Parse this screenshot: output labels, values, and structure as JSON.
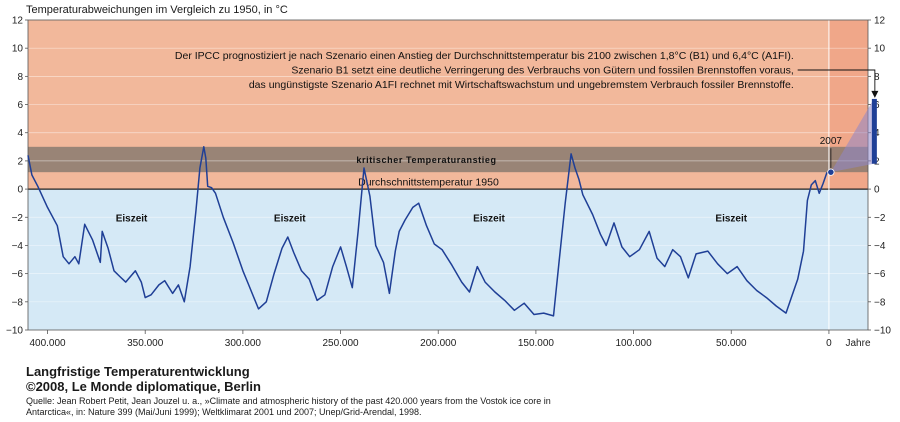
{
  "chart_data": {
    "type": "line",
    "title": "Temperaturabweichungen im Vergleich zu 1950, in °C",
    "xlabel": "Jahre",
    "ylabel": "",
    "xlim": [
      410000,
      -20000
    ],
    "ylim": [
      -10,
      12
    ],
    "x_ticks": [
      "400.000",
      "350.000",
      "300.000",
      "250.000",
      "200.000",
      "150.000",
      "100.000",
      "50.000",
      "0"
    ],
    "y_ticks": [
      "−10",
      "−8",
      "−6",
      "−4",
      "−2",
      "0",
      "2",
      "4",
      "6",
      "8",
      "10",
      "12"
    ],
    "grid": true,
    "legend": "none",
    "band": {
      "from": 1.2,
      "to": 3.0,
      "label": "kritischer Temperaturanstieg"
    },
    "baseline": {
      "value": 0,
      "label": "Durchschnittstemperatur 1950"
    },
    "glacial_labels": [
      {
        "text": "Eiszeit",
        "x": 357000,
        "y": -2.3
      },
      {
        "text": "Eiszeit",
        "x": 276000,
        "y": -2.3
      },
      {
        "text": "Eiszeit",
        "x": 174000,
        "y": -2.3
      },
      {
        "text": "Eiszeit",
        "x": 50000,
        "y": -2.3
      }
    ],
    "annotation": {
      "lines": [
        "Der IPCC prognostiziert je nach Szenario einen Anstieg der Durchschnittstemperatur bis 2100 zwischen 1,8°C (B1) und  6,4°C (A1FI).",
        "Szenario B1 setzt eine deutliche Verringerung des Verbrauchs von Gütern und fossilen Brennstoffen voraus,",
        "das ungünstigste Szenario A1FI rechnet mit Wirtschaftswachstum und ungebremstem Verbrauch fossiler Brennstoffe."
      ],
      "year_label": "2007",
      "year_2007_value": 1.2,
      "forecast_min": 1.8,
      "forecast_max": 6.4
    },
    "series": [
      {
        "values": [
          [
            410000,
            2.4
          ],
          [
            408000,
            1.0
          ],
          [
            405000,
            0.2
          ],
          [
            400000,
            -1.3
          ],
          [
            395000,
            -2.6
          ],
          [
            392000,
            -4.8
          ],
          [
            389000,
            -5.3
          ],
          [
            386000,
            -4.8
          ],
          [
            384000,
            -5.3
          ],
          [
            381000,
            -2.5
          ],
          [
            377000,
            -3.6
          ],
          [
            373000,
            -5.2
          ],
          [
            372000,
            -3.0
          ],
          [
            369000,
            -4.2
          ],
          [
            366000,
            -5.8
          ],
          [
            363000,
            -6.2
          ],
          [
            360000,
            -6.6
          ],
          [
            355000,
            -5.8
          ],
          [
            352000,
            -6.6
          ],
          [
            350000,
            -7.7
          ],
          [
            347000,
            -7.5
          ],
          [
            343000,
            -6.8
          ],
          [
            340000,
            -6.5
          ],
          [
            336000,
            -7.4
          ],
          [
            333000,
            -6.8
          ],
          [
            330000,
            -8.0
          ],
          [
            327000,
            -5.5
          ],
          [
            324000,
            -1.5
          ],
          [
            322000,
            1.5
          ],
          [
            320000,
            3.0
          ],
          [
            319000,
            2.2
          ],
          [
            318000,
            0.2
          ],
          [
            316000,
            0.1
          ],
          [
            314000,
            -0.3
          ],
          [
            310000,
            -2.0
          ],
          [
            305000,
            -3.8
          ],
          [
            300000,
            -5.8
          ],
          [
            297000,
            -6.8
          ],
          [
            292000,
            -8.5
          ],
          [
            288000,
            -8.0
          ],
          [
            284000,
            -6.0
          ],
          [
            280000,
            -4.2
          ],
          [
            277000,
            -3.4
          ],
          [
            274000,
            -4.5
          ],
          [
            270000,
            -5.8
          ],
          [
            266000,
            -6.4
          ],
          [
            262000,
            -7.9
          ],
          [
            258000,
            -7.5
          ],
          [
            254000,
            -5.5
          ],
          [
            250000,
            -4.1
          ],
          [
            247000,
            -5.5
          ],
          [
            244000,
            -7.0
          ],
          [
            241000,
            -3.0
          ],
          [
            238000,
            1.5
          ],
          [
            235000,
            -0.5
          ],
          [
            232000,
            -4.0
          ],
          [
            228000,
            -5.2
          ],
          [
            225000,
            -7.4
          ],
          [
            222000,
            -4.4
          ],
          [
            220000,
            -3.0
          ],
          [
            217000,
            -2.2
          ],
          [
            213000,
            -1.3
          ],
          [
            210000,
            -1.0
          ],
          [
            206000,
            -2.6
          ],
          [
            202000,
            -3.9
          ],
          [
            198000,
            -4.3
          ],
          [
            193000,
            -5.4
          ],
          [
            188000,
            -6.6
          ],
          [
            184000,
            -7.3
          ],
          [
            180000,
            -5.5
          ],
          [
            176000,
            -6.6
          ],
          [
            171000,
            -7.3
          ],
          [
            166000,
            -7.9
          ],
          [
            161000,
            -8.6
          ],
          [
            156000,
            -8.1
          ],
          [
            151000,
            -8.9
          ],
          [
            146000,
            -8.8
          ],
          [
            141000,
            -9.0
          ],
          [
            138000,
            -5.0
          ],
          [
            135000,
            -1.0
          ],
          [
            132000,
            2.5
          ],
          [
            130000,
            1.5
          ],
          [
            128000,
            0.7
          ],
          [
            126000,
            -0.4
          ],
          [
            121000,
            -1.8
          ],
          [
            117000,
            -3.2
          ],
          [
            114000,
            -4.0
          ],
          [
            110000,
            -2.4
          ],
          [
            106000,
            -4.1
          ],
          [
            102000,
            -4.8
          ],
          [
            97000,
            -4.3
          ],
          [
            92000,
            -3.0
          ],
          [
            88000,
            -4.9
          ],
          [
            84000,
            -5.5
          ],
          [
            80000,
            -4.3
          ],
          [
            76000,
            -4.8
          ],
          [
            72000,
            -6.3
          ],
          [
            68000,
            -4.6
          ],
          [
            62000,
            -4.4
          ],
          [
            57000,
            -5.3
          ],
          [
            52000,
            -6.0
          ],
          [
            47000,
            -5.5
          ],
          [
            42000,
            -6.5
          ],
          [
            37000,
            -7.2
          ],
          [
            32000,
            -7.7
          ],
          [
            27000,
            -8.3
          ],
          [
            22000,
            -8.8
          ],
          [
            19000,
            -7.6
          ],
          [
            16000,
            -6.4
          ],
          [
            13000,
            -4.4
          ],
          [
            11000,
            -0.8
          ],
          [
            9000,
            0.3
          ],
          [
            7000,
            0.6
          ],
          [
            5000,
            -0.3
          ],
          [
            3000,
            0.4
          ],
          [
            1000,
            1.2
          ]
        ]
      }
    ]
  },
  "footer": {
    "title": "Langfristige Temperaturentwicklung",
    "credit": "©2008, Le Monde diplomatique, Berlin",
    "source_1": "Quelle: Jean Robert Petit, Jean Jouzel u. a., »Climate and atmospheric history of the past 420.000 years from the Vostok ice core in",
    "source_2": "Antarctica«, in: Nature 399 (Mai/Juni 1999); Weltklimarat 2001 und 2007; Unep/Grid-Arendal, 1998."
  },
  "colors": {
    "warm_background": "#f2b89b",
    "cold_background": "#d5e9f6",
    "forecast_zone": "#f0a789",
    "band": "#8a7a70",
    "series": "#1f3f96",
    "grid": "#ffffff"
  }
}
